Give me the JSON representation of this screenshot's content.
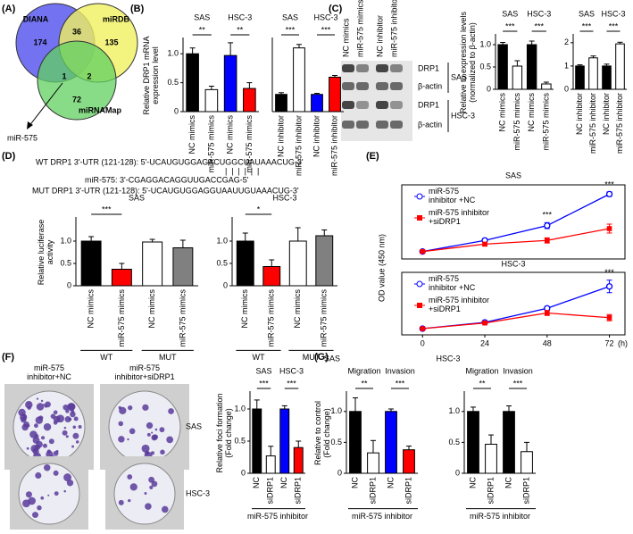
{
  "panels": [
    "(A)",
    "(B)",
    "(C)",
    "(D)",
    "(E)",
    "(F)",
    "(G)"
  ],
  "venn": {
    "sets": [
      "DIANA",
      "miRDB",
      "miRNAMap"
    ],
    "counts": [
      174,
      36,
      135,
      1,
      2,
      72
    ],
    "highlight": "miR-575"
  },
  "blot": {
    "columns": [
      "NC mimics",
      "miR-575 mimics",
      "NC inhibitor",
      "miR-575 inhibitor"
    ],
    "rows": [
      "DRP1",
      "β-actin",
      "DRP1",
      "β-actin"
    ],
    "cells": [
      "SAS",
      "HSC-3"
    ]
  },
  "sequences": [
    "WT DRP1 3'-UTR (121-128): 5'-UCAUGUGGAGACUGGCUAUAAACUG-3'",
    "miR-575: 3'-CGAGGACAGGUUGACCGAG-5'",
    "MUT DRP1 3'-UTR (121-128): 5'-UCAUGUGGAGGUAAUUGUAAACUG-3'"
  ],
  "foci": {
    "columns": [
      "miR-575 inhibitor+NC",
      "miR-575 inhibitor+siDRP1"
    ],
    "rows": [
      "SAS",
      "HSC-3"
    ]
  },
  "chart_data": [
    {
      "type": "bar",
      "ylabel": "Relative DRP1 mRNA expression level",
      "categories": [
        "NC mimics",
        "miR-575 mimics",
        "NC mimics",
        "miR-575 mimics"
      ],
      "values": [
        1.0,
        0.38,
        0.97,
        0.4
      ],
      "errors": [
        0.1,
        0.06,
        0.22,
        0.1
      ],
      "colors": [
        "#000000",
        "#ffffff",
        "#0000ff",
        "#ff0000"
      ],
      "groups": [
        "SAS",
        "HSC-3"
      ],
      "significance": [
        "**",
        "**"
      ],
      "ylim": [
        0,
        1.25
      ],
      "yticks": [
        0,
        0.5,
        {
          "value": 1,
          "label": "1.0"
        }
      ]
    },
    {
      "type": "bar",
      "categories": [
        "NC inhibitor",
        "miR-575 inhibitor",
        "NC inhibitor",
        "miR-575 inhibitor"
      ],
      "values": [
        1.0,
        3.7,
        1.0,
        2.0
      ],
      "errors": [
        0.1,
        0.2,
        0.06,
        0.1
      ],
      "colors": [
        "#000000",
        "#ffffff",
        "#0000ff",
        "#ff0000"
      ],
      "groups": [
        "SAS",
        "HSC-3"
      ],
      "significance": [
        "***",
        "***"
      ],
      "ylim": [
        0,
        4.2
      ]
    },
    {
      "type": "bar",
      "ylabel": "Relative to  expression levels (normalized to β-actin)",
      "categories": [
        "NC mimics",
        "miR-575 mimics",
        "NC mimics",
        "miR-575 mimics"
      ],
      "values": [
        1.0,
        0.52,
        1.0,
        0.12
      ],
      "errors": [
        0.05,
        0.12,
        0.08,
        0.04
      ],
      "colors": [
        "#000000",
        "#ffffff",
        "#000000",
        "#ffffff"
      ],
      "groups": [
        "SAS",
        "HSC-3"
      ],
      "significance": [
        "***",
        "***"
      ],
      "ylim": [
        0,
        1.2
      ],
      "yticks": [
        0,
        0.5,
        {
          "value": 1,
          "label": "1.0"
        }
      ]
    },
    {
      "type": "bar",
      "categories": [
        "NC inhibitor",
        "miR-575 inhibitor",
        "NC inhibitor",
        "miR-575 inhibitor"
      ],
      "values": [
        1.0,
        1.35,
        1.0,
        1.95
      ],
      "errors": [
        0.05,
        0.08,
        0.08,
        0.07
      ],
      "colors": [
        "#000000",
        "#ffffff",
        "#000000",
        "#ffffff"
      ],
      "groups": [
        "SAS",
        "HSC-3"
      ],
      "significance": [
        "***",
        "***"
      ],
      "ylim": [
        0,
        2.3
      ],
      "yticks": [
        0,
        1,
        2
      ]
    },
    {
      "type": "bar",
      "title": "SAS",
      "ylabel": "Relative luciferase activity",
      "categories": [
        "NC mimics",
        "miR-575 mimics",
        "NC mimics",
        "miR-575 mimics"
      ],
      "values": [
        1.0,
        0.37,
        0.98,
        0.85
      ],
      "errors": [
        0.1,
        0.13,
        0.06,
        0.17
      ],
      "colors": [
        "#000000",
        "#ff0000",
        "#ffffff",
        "#808080"
      ],
      "groups": [
        "WT",
        "MUT"
      ],
      "significance": [
        "***"
      ],
      "ylim": [
        0,
        1.5
      ],
      "yticks": [
        0,
        0.5,
        {
          "value": 1,
          "label": "1.0"
        }
      ]
    },
    {
      "type": "bar",
      "title": "HSC-3",
      "categories": [
        "NC mimics",
        "miR-575 mimics",
        "NC mimics",
        "miR-575 mimics"
      ],
      "values": [
        1.0,
        0.43,
        1.0,
        1.12
      ],
      "errors": [
        0.18,
        0.15,
        0.3,
        0.13
      ],
      "colors": [
        "#000000",
        "#ff0000",
        "#ffffff",
        "#808080"
      ],
      "groups": [
        "WT",
        "MUT"
      ],
      "significance": [
        "*"
      ],
      "ylim": [
        0,
        1.5
      ],
      "yticks": [
        0,
        0.5,
        {
          "value": 1,
          "label": "1.0"
        }
      ]
    },
    {
      "type": "line",
      "title": "SAS",
      "ylabel": "OD value (450 nm)",
      "x": [
        0,
        24,
        48,
        72
      ],
      "xlim": [
        -8,
        78
      ],
      "ylim": [
        0,
        2
      ],
      "series": [
        {
          "name": "miR-575 inhibitor +NC",
          "color": "#0000ff",
          "values": [
            0.2,
            0.5,
            0.9,
            1.75
          ],
          "errors": [
            0.02,
            0.05,
            0.08,
            0.06
          ]
        },
        {
          "name": "miR-575 inhibitor +siDRP1",
          "color": "#ff0000",
          "values": [
            0.2,
            0.4,
            0.5,
            0.82
          ],
          "errors": [
            0.02,
            0.05,
            0.07,
            0.12
          ]
        }
      ],
      "significance": [
        null,
        null,
        "***",
        "***"
      ]
    },
    {
      "type": "line",
      "title": "HSC-3",
      "x": [
        0,
        24,
        48,
        72
      ],
      "xlim": [
        -8,
        78
      ],
      "ylim": [
        0,
        2
      ],
      "xticks": [
        0,
        24,
        48,
        72
      ],
      "xlabel": "(h)",
      "series": [
        {
          "name": "miR-575 inhibitor +NC",
          "color": "#0000ff",
          "values": [
            0.2,
            0.4,
            0.85,
            1.55
          ],
          "errors": [
            0.02,
            0.03,
            0.05,
            0.2
          ]
        },
        {
          "name": "miR-575 inhibitor +siDRP1",
          "color": "#ff0000",
          "values": [
            0.2,
            0.38,
            0.7,
            0.55
          ],
          "errors": [
            0.02,
            0.03,
            0.08,
            0.1
          ]
        }
      ],
      "significance": [
        null,
        null,
        null,
        "***"
      ]
    },
    {
      "type": "bar",
      "ylabel": "Relative foci formation (Fold change)",
      "categories": [
        "NC",
        "siDRP1",
        "NC",
        "siDRP1"
      ],
      "values": [
        1.0,
        0.27,
        1.0,
        0.4
      ],
      "errors": [
        0.14,
        0.15,
        0.05,
        0.1
      ],
      "colors": [
        "#000000",
        "#ffffff",
        "#0000ff",
        "#ff0000"
      ],
      "groups": [
        "SAS",
        "HSC-3"
      ],
      "significance": [
        "***",
        "***"
      ],
      "footer": "miR-575 inhibitor",
      "ylim": [
        0,
        1.25
      ],
      "yticks": [
        0,
        0.5,
        {
          "value": 1,
          "label": "1.0"
        }
      ]
    },
    {
      "type": "bar",
      "title": "SAS",
      "ylabel": "Relative to control (Fold change)",
      "categories": [
        "NC",
        "siDRP1",
        "NC",
        "siDRP1"
      ],
      "values": [
        1.0,
        0.33,
        1.0,
        0.38
      ],
      "errors": [
        0.22,
        0.2,
        0.04,
        0.06
      ],
      "colors": [
        "#000000",
        "#ffffff",
        "#0000ff",
        "#ff0000"
      ],
      "groups": [
        "Migration",
        "Invasion"
      ],
      "significance": [
        "**",
        "***"
      ],
      "footer": "miR-575 inhibitor",
      "ylim": [
        0,
        1.3
      ],
      "yticks": [
        0,
        0.5,
        {
          "value": 1,
          "label": "1.0"
        }
      ]
    },
    {
      "type": "bar",
      "title": "HSC-3",
      "categories": [
        "NC",
        "siDRP1",
        "NC",
        "siDRP1"
      ],
      "values": [
        1.0,
        0.47,
        1.0,
        0.35
      ],
      "errors": [
        0.07,
        0.15,
        0.09,
        0.15
      ],
      "colors": [
        "#000000",
        "#ffffff",
        "#000000",
        "#ffffff"
      ],
      "groups": [
        "Migration",
        "Invasion"
      ],
      "significance": [
        "**",
        "***"
      ],
      "footer": "miR-575 inhibitor",
      "ylim": [
        0,
        1.3
      ],
      "yticks": [
        0,
        0.5,
        {
          "value": 1,
          "label": "1.0"
        }
      ]
    }
  ]
}
